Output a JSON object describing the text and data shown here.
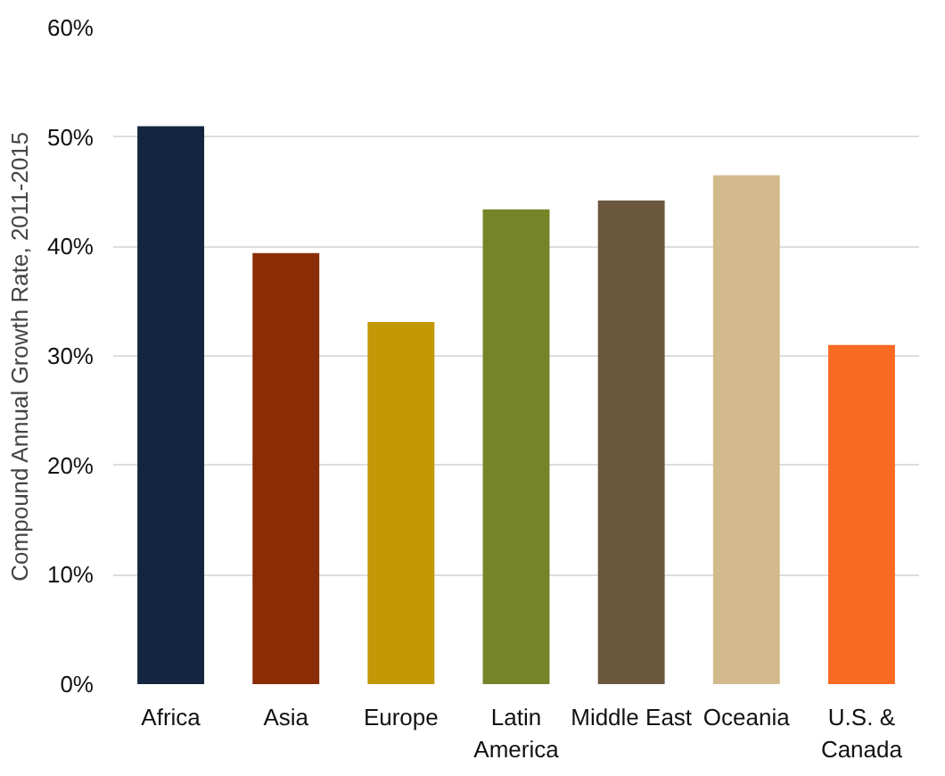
{
  "chart_data": {
    "type": "bar",
    "ylabel": "Compound Annual Growth Rate, 2011-2015",
    "categories": [
      "Africa",
      "Asia",
      "Europe",
      "Latin\nAmerica",
      "Middle East",
      "Oceania",
      "U.S. &\nCanada"
    ],
    "values": [
      51,
      39.4,
      33.1,
      43.4,
      44.2,
      46.5,
      31
    ],
    "colors": [
      "#14263f",
      "#8a2d06",
      "#c29806",
      "#768428",
      "#6a573e",
      "#d2ba8c",
      "#f96a23"
    ],
    "ylim": [
      0,
      60
    ],
    "yticks": [
      {
        "value": 0,
        "label": "0%"
      },
      {
        "value": 10,
        "label": "10%"
      },
      {
        "value": 20,
        "label": "20%"
      },
      {
        "value": 30,
        "label": "30%"
      },
      {
        "value": 40,
        "label": "40%"
      },
      {
        "value": 50,
        "label": "50%"
      },
      {
        "value": 60,
        "label": "60%"
      }
    ],
    "grid": "y"
  }
}
